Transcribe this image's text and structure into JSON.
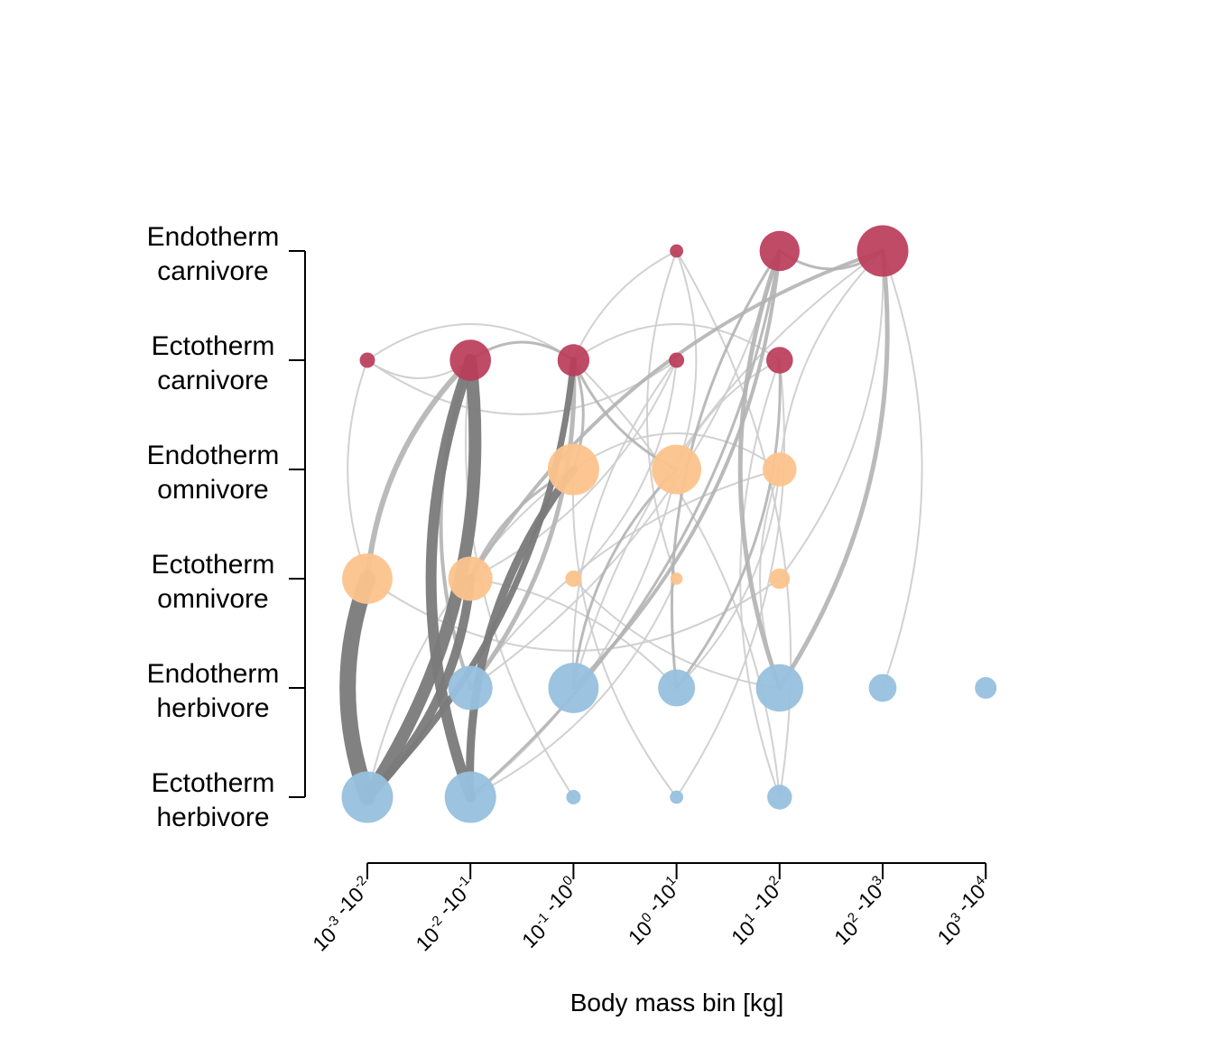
{
  "chart_data": {
    "type": "network",
    "xlabel": "Body mass bin [kg]",
    "x_ticks": [
      {
        "base": "10",
        "exp_lo": "-3",
        "sep": " -",
        "exp_hi": "-2"
      },
      {
        "base": "10",
        "exp_lo": "-2",
        "sep": " -",
        "exp_hi": "-1"
      },
      {
        "base": "10",
        "exp_lo": "-1",
        "sep": " -",
        "exp_hi": "0"
      },
      {
        "base": "10",
        "exp_lo": "0",
        "sep": " -",
        "exp_hi": "1"
      },
      {
        "base": "10",
        "exp_lo": "1",
        "sep": " -",
        "exp_hi": "2"
      },
      {
        "base": "10",
        "exp_lo": "2",
        "sep": " -",
        "exp_hi": "3"
      },
      {
        "base": "10",
        "exp_lo": "3",
        "sep": " -",
        "exp_hi": "4"
      }
    ],
    "y_categories": [
      [
        "Endotherm",
        "carnivore"
      ],
      [
        "Ectotherm",
        "carnivore"
      ],
      [
        "Endotherm",
        "omnivore"
      ],
      [
        "Ectotherm",
        "omnivore"
      ],
      [
        "Endotherm",
        "herbivore"
      ],
      [
        "Ectotherm",
        "herbivore"
      ]
    ],
    "colors": {
      "carnivore": "#bb3c5a",
      "omnivore": "#fcc38c",
      "herbivore": "#97c0dd",
      "link_light": "#cccccc",
      "link_mid": "#b3b3b3",
      "link_dark": "#7a7a7a"
    },
    "nodes": [
      {
        "group": 0,
        "bin": 3,
        "size": 0.13,
        "diet": "carnivore"
      },
      {
        "group": 0,
        "bin": 4,
        "size": 0.39,
        "diet": "carnivore"
      },
      {
        "group": 0,
        "bin": 5,
        "size": 0.5,
        "diet": "carnivore"
      },
      {
        "group": 1,
        "bin": 0,
        "size": 0.15,
        "diet": "carnivore"
      },
      {
        "group": 1,
        "bin": 1,
        "size": 0.4,
        "diet": "carnivore"
      },
      {
        "group": 1,
        "bin": 2,
        "size": 0.31,
        "diet": "carnivore"
      },
      {
        "group": 1,
        "bin": 3,
        "size": 0.15,
        "diet": "carnivore"
      },
      {
        "group": 1,
        "bin": 4,
        "size": 0.26,
        "diet": "carnivore"
      },
      {
        "group": 2,
        "bin": 2,
        "size": 0.5,
        "diet": "omnivore"
      },
      {
        "group": 2,
        "bin": 3,
        "size": 0.48,
        "diet": "omnivore"
      },
      {
        "group": 2,
        "bin": 4,
        "size": 0.33,
        "diet": "omnivore"
      },
      {
        "group": 3,
        "bin": 0,
        "size": 0.49,
        "diet": "omnivore"
      },
      {
        "group": 3,
        "bin": 1,
        "size": 0.43,
        "diet": "omnivore"
      },
      {
        "group": 3,
        "bin": 2,
        "size": 0.16,
        "diet": "omnivore"
      },
      {
        "group": 3,
        "bin": 3,
        "size": 0.12,
        "diet": "omnivore"
      },
      {
        "group": 3,
        "bin": 4,
        "size": 0.2,
        "diet": "omnivore"
      },
      {
        "group": 4,
        "bin": 1,
        "size": 0.43,
        "diet": "herbivore"
      },
      {
        "group": 4,
        "bin": 2,
        "size": 0.49,
        "diet": "herbivore"
      },
      {
        "group": 4,
        "bin": 3,
        "size": 0.36,
        "diet": "herbivore"
      },
      {
        "group": 4,
        "bin": 4,
        "size": 0.46,
        "diet": "herbivore"
      },
      {
        "group": 4,
        "bin": 5,
        "size": 0.27,
        "diet": "herbivore"
      },
      {
        "group": 4,
        "bin": 6,
        "size": 0.21,
        "diet": "herbivore"
      },
      {
        "group": 5,
        "bin": 0,
        "size": 0.5,
        "diet": "herbivore"
      },
      {
        "group": 5,
        "bin": 1,
        "size": 0.5,
        "diet": "herbivore"
      },
      {
        "group": 5,
        "bin": 2,
        "size": 0.14,
        "diet": "herbivore"
      },
      {
        "group": 5,
        "bin": 3,
        "size": 0.13,
        "diet": "herbivore"
      },
      {
        "group": 5,
        "bin": 4,
        "size": 0.24,
        "diet": "herbivore"
      }
    ],
    "links": [
      {
        "from": [
          5,
          0
        ],
        "to": [
          3,
          0
        ],
        "weight": 18,
        "tone": "dark"
      },
      {
        "from": [
          5,
          0
        ],
        "to": [
          1,
          1
        ],
        "weight": 14,
        "tone": "dark"
      },
      {
        "from": [
          5,
          1
        ],
        "to": [
          1,
          1
        ],
        "weight": 12,
        "tone": "dark"
      },
      {
        "from": [
          5,
          0
        ],
        "to": [
          3,
          1
        ],
        "weight": 10,
        "tone": "dark"
      },
      {
        "from": [
          5,
          1
        ],
        "to": [
          2,
          2
        ],
        "weight": 9,
        "tone": "dark"
      },
      {
        "from": [
          5,
          0
        ],
        "to": [
          1,
          2
        ],
        "weight": 7,
        "tone": "dark"
      },
      {
        "from": [
          3,
          0
        ],
        "to": [
          1,
          1
        ],
        "weight": 6,
        "tone": "mid"
      },
      {
        "from": [
          4,
          1
        ],
        "to": [
          1,
          2
        ],
        "weight": 5,
        "tone": "mid"
      },
      {
        "from": [
          4,
          1
        ],
        "to": [
          1,
          1
        ],
        "weight": 4,
        "tone": "mid"
      },
      {
        "from": [
          4,
          2
        ],
        "to": [
          0,
          4
        ],
        "weight": 4,
        "tone": "mid"
      },
      {
        "from": [
          4,
          4
        ],
        "to": [
          0,
          4
        ],
        "weight": 5,
        "tone": "mid"
      },
      {
        "from": [
          4,
          4
        ],
        "to": [
          0,
          5
        ],
        "weight": 5,
        "tone": "mid"
      },
      {
        "from": [
          3,
          1
        ],
        "to": [
          0,
          5
        ],
        "weight": 4,
        "tone": "mid"
      },
      {
        "from": [
          4,
          3
        ],
        "to": [
          1,
          4
        ],
        "weight": 3,
        "tone": "mid"
      },
      {
        "from": [
          3,
          1
        ],
        "to": [
          2,
          2
        ],
        "weight": 3,
        "tone": "mid"
      },
      {
        "from": [
          2,
          2
        ],
        "to": [
          1,
          2
        ],
        "weight": 3,
        "tone": "mid"
      },
      {
        "from": [
          1,
          1
        ],
        "to": [
          1,
          2
        ],
        "weight": 3,
        "tone": "mid"
      },
      {
        "from": [
          1,
          2
        ],
        "to": [
          2,
          3
        ],
        "weight": 3,
        "tone": "mid"
      },
      {
        "from": [
          4,
          3
        ],
        "to": [
          0,
          4
        ],
        "weight": 3,
        "tone": "mid"
      },
      {
        "from": [
          5,
          1
        ],
        "to": [
          0,
          4
        ],
        "weight": 3,
        "tone": "mid"
      },
      {
        "from": [
          4,
          2
        ],
        "to": [
          2,
          3
        ],
        "weight": 3,
        "tone": "mid"
      },
      {
        "from": [
          0,
          4
        ],
        "to": [
          0,
          5
        ],
        "weight": 3,
        "tone": "mid"
      },
      {
        "from": [
          5,
          2
        ],
        "to": [
          1,
          1
        ],
        "weight": 2,
        "tone": "light"
      },
      {
        "from": [
          5,
          1
        ],
        "to": [
          2,
          3
        ],
        "weight": 2,
        "tone": "light"
      },
      {
        "from": [
          4,
          2
        ],
        "to": [
          1,
          3
        ],
        "weight": 2,
        "tone": "light"
      },
      {
        "from": [
          4,
          3
        ],
        "to": [
          2,
          4
        ],
        "weight": 2,
        "tone": "light"
      },
      {
        "from": [
          4,
          4
        ],
        "to": [
          2,
          4
        ],
        "weight": 2,
        "tone": "light"
      },
      {
        "from": [
          5,
          3
        ],
        "to": [
          1,
          4
        ],
        "weight": 2,
        "tone": "light"
      },
      {
        "from": [
          5,
          4
        ],
        "to": [
          1,
          4
        ],
        "weight": 2,
        "tone": "light"
      },
      {
        "from": [
          5,
          4
        ],
        "to": [
          0,
          3
        ],
        "weight": 2,
        "tone": "light"
      },
      {
        "from": [
          3,
          0
        ],
        "to": [
          1,
          0
        ],
        "weight": 2,
        "tone": "light"
      },
      {
        "from": [
          1,
          0
        ],
        "to": [
          1,
          1
        ],
        "weight": 2,
        "tone": "light"
      },
      {
        "from": [
          1,
          0
        ],
        "to": [
          1,
          2
        ],
        "weight": 2,
        "tone": "light"
      },
      {
        "from": [
          3,
          2
        ],
        "to": [
          1,
          3
        ],
        "weight": 2,
        "tone": "light"
      },
      {
        "from": [
          3,
          3
        ],
        "to": [
          0,
          3
        ],
        "weight": 2,
        "tone": "light"
      },
      {
        "from": [
          2,
          3
        ],
        "to": [
          0,
          3
        ],
        "weight": 2,
        "tone": "light"
      },
      {
        "from": [
          1,
          2
        ],
        "to": [
          0,
          3
        ],
        "weight": 2,
        "tone": "light"
      },
      {
        "from": [
          4,
          1
        ],
        "to": [
          0,
          4
        ],
        "weight": 2,
        "tone": "light"
      },
      {
        "from": [
          4,
          2
        ],
        "to": [
          0,
          5
        ],
        "weight": 2,
        "tone": "light"
      },
      {
        "from": [
          3,
          4
        ],
        "to": [
          0,
          5
        ],
        "weight": 2,
        "tone": "light"
      },
      {
        "from": [
          2,
          4
        ],
        "to": [
          0,
          5
        ],
        "weight": 2,
        "tone": "light"
      },
      {
        "from": [
          3,
          0
        ],
        "to": [
          3,
          4
        ],
        "weight": 2,
        "tone": "light"
      },
      {
        "from": [
          2,
          2
        ],
        "to": [
          2,
          4
        ],
        "weight": 2,
        "tone": "light"
      },
      {
        "from": [
          1,
          0
        ],
        "to": [
          1,
          3
        ],
        "weight": 2,
        "tone": "light"
      },
      {
        "from": [
          1,
          2
        ],
        "to": [
          1,
          4
        ],
        "weight": 2,
        "tone": "light"
      },
      {
        "from": [
          5,
          4
        ],
        "to": [
          1,
          2
        ],
        "weight": 2,
        "tone": "light"
      },
      {
        "from": [
          5,
          3
        ],
        "to": [
          2,
          2
        ],
        "weight": 2,
        "tone": "light"
      },
      {
        "from": [
          4,
          3
        ],
        "to": [
          3,
          1
        ],
        "weight": 2,
        "tone": "light"
      },
      {
        "from": [
          4,
          4
        ],
        "to": [
          3,
          2
        ],
        "weight": 2,
        "tone": "light"
      },
      {
        "from": [
          5,
          1
        ],
        "to": [
          3,
          3
        ],
        "weight": 2,
        "tone": "light"
      },
      {
        "from": [
          4,
          1
        ],
        "to": [
          2,
          4
        ],
        "weight": 2,
        "tone": "light"
      },
      {
        "from": [
          3,
          1
        ],
        "to": [
          1,
          3
        ],
        "weight": 2,
        "tone": "light"
      },
      {
        "from": [
          2,
          3
        ],
        "to": [
          1,
          4
        ],
        "weight": 2,
        "tone": "light"
      },
      {
        "from": [
          4,
          5
        ],
        "to": [
          0,
          5
        ],
        "weight": 2,
        "tone": "light"
      },
      {
        "from": [
          5,
          0
        ],
        "to": [
          2,
          2
        ],
        "weight": 2,
        "tone": "light"
      }
    ]
  }
}
